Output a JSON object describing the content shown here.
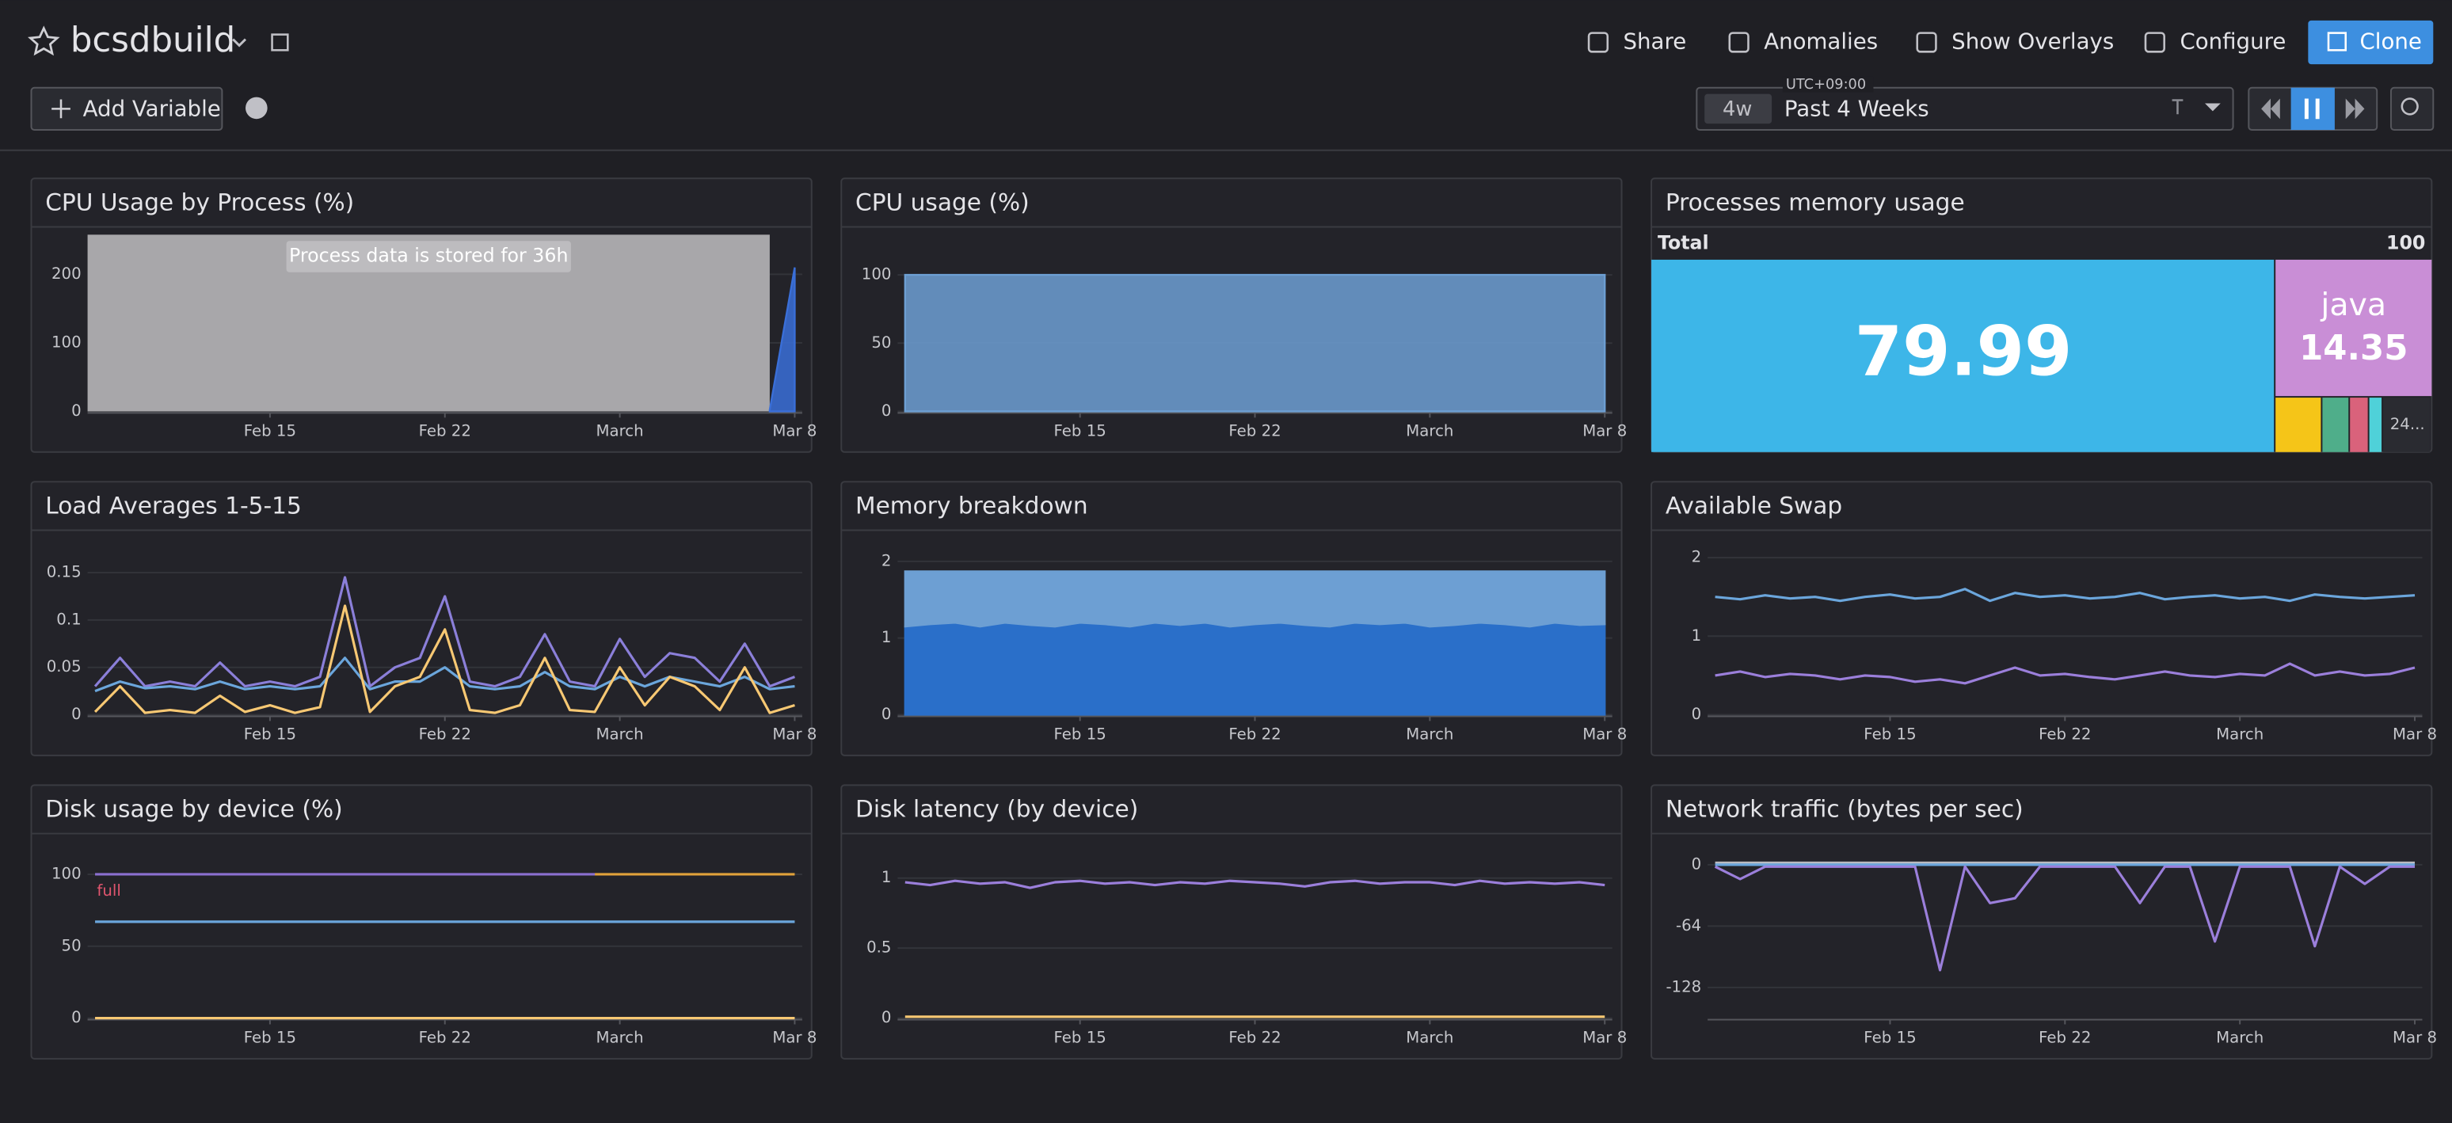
{
  "header": {
    "title": "bcsdbuild",
    "actions": [
      "Share",
      "Anomalies",
      "Show Overlays",
      "Configure",
      "Clone"
    ],
    "add_variable": "Add Variable",
    "timezone": "UTC+09:00",
    "time_short": "4w",
    "time_range": "Past 4 Weeks"
  },
  "chart_data": [
    {
      "type": "area",
      "title": "CPU Usage by Process (%)",
      "annotation": "Process data is stored for 36h",
      "grid": true,
      "x": [
        39,
        40,
        41,
        42,
        43,
        44,
        45,
        46,
        47,
        48,
        49,
        50,
        51,
        52,
        53,
        54,
        55,
        56,
        57,
        58,
        59,
        60,
        61,
        62,
        63,
        64,
        65,
        66,
        67
      ],
      "xlim": [
        38.7,
        67.3
      ],
      "xticks": [
        {
          "value": 46,
          "label": "Feb 15"
        },
        {
          "value": 53,
          "label": "Feb 22"
        },
        {
          "value": 60,
          "label": "March"
        },
        {
          "value": 67,
          "label": "Mar 8"
        }
      ],
      "ylim": [
        0,
        235
      ],
      "yticks": [
        0,
        100,
        200
      ],
      "series": [
        {
          "color": "#3a6fd8",
          "values": [
            null,
            null,
            null,
            null,
            null,
            null,
            null,
            null,
            null,
            null,
            null,
            null,
            null,
            null,
            null,
            null,
            null,
            null,
            null,
            null,
            null,
            null,
            null,
            null,
            null,
            null,
            null,
            2,
            210
          ]
        }
      ]
    },
    {
      "type": "area",
      "title": "CPU usage (%)",
      "grid": true,
      "x": [
        39,
        40,
        41,
        42,
        43,
        44,
        45,
        46,
        47,
        48,
        49,
        50,
        51,
        52,
        53,
        54,
        55,
        56,
        57,
        58,
        59,
        60,
        61,
        62,
        63,
        64,
        65,
        66,
        67
      ],
      "xlim": [
        38.7,
        67.3
      ],
      "xticks": [
        {
          "value": 46,
          "label": "Feb 15"
        },
        {
          "value": 53,
          "label": "Feb 22"
        },
        {
          "value": 60,
          "label": "March"
        },
        {
          "value": 67,
          "label": "Mar 8"
        }
      ],
      "ylim": [
        0,
        118
      ],
      "yticks": [
        0,
        50,
        100
      ],
      "series": [
        {
          "color": "#6d9fd3",
          "values": [
            100,
            100,
            100,
            100,
            100,
            100,
            100,
            100,
            100,
            100,
            100,
            100,
            100,
            100,
            100,
            100,
            100,
            100,
            100,
            100,
            100,
            100,
            100,
            100,
            100,
            100,
            100,
            100,
            100
          ]
        }
      ]
    },
    {
      "type": "treemap",
      "title": "Processes memory usage",
      "total_label": "Total",
      "total": 100,
      "items": [
        {
          "name": null,
          "value": 79.99,
          "color": "#3db6e8"
        },
        {
          "name": "java",
          "value": 14.35,
          "color": "#c98ed6"
        },
        {
          "name": null,
          "value": 1.7,
          "color": "#f5c518"
        },
        {
          "name": null,
          "value": 1.0,
          "color": "#4fae8a"
        },
        {
          "name": null,
          "value": 0.7,
          "color": "#d9627b"
        },
        {
          "name": null,
          "value": 0.5,
          "color": "#4fd1d9"
        },
        {
          "name": "24...",
          "value": 1.76,
          "color": "#2a2b31"
        }
      ]
    },
    {
      "type": "line",
      "title": "Load Averages 1-5-15",
      "grid": true,
      "x": [
        39,
        40,
        41,
        42,
        43,
        44,
        45,
        46,
        47,
        48,
        49,
        50,
        51,
        52,
        53,
        54,
        55,
        56,
        57,
        58,
        59,
        60,
        61,
        62,
        63,
        64,
        65,
        66,
        67
      ],
      "xlim": [
        38.7,
        67.3
      ],
      "xticks": [
        {
          "value": 46,
          "label": "Feb 15"
        },
        {
          "value": 53,
          "label": "Feb 22"
        },
        {
          "value": 60,
          "label": "March"
        },
        {
          "value": 67,
          "label": "Mar 8"
        }
      ],
      "ylim": [
        0,
        0.17
      ],
      "yticks": [
        0,
        0.05,
        0.1,
        0.15
      ],
      "series": [
        {
          "color": "#8b7fd9",
          "values": [
            0.03,
            0.06,
            0.03,
            0.035,
            0.03,
            0.055,
            0.03,
            0.035,
            0.03,
            0.04,
            0.145,
            0.03,
            0.05,
            0.06,
            0.125,
            0.035,
            0.03,
            0.04,
            0.085,
            0.035,
            0.03,
            0.08,
            0.04,
            0.065,
            0.06,
            0.035,
            0.075,
            0.03,
            0.04
          ]
        },
        {
          "color": "#6ba6dc",
          "values": [
            0.025,
            0.035,
            0.028,
            0.03,
            0.027,
            0.035,
            0.027,
            0.03,
            0.027,
            0.03,
            0.06,
            0.027,
            0.035,
            0.035,
            0.05,
            0.03,
            0.027,
            0.03,
            0.045,
            0.03,
            0.027,
            0.04,
            0.03,
            0.04,
            0.035,
            0.03,
            0.04,
            0.027,
            0.03
          ]
        },
        {
          "color": "#f7c873",
          "values": [
            0.003,
            0.03,
            0.002,
            0.005,
            0.002,
            0.02,
            0.003,
            0.01,
            0.002,
            0.008,
            0.115,
            0.003,
            0.03,
            0.04,
            0.09,
            0.005,
            0.002,
            0.01,
            0.06,
            0.005,
            0.003,
            0.05,
            0.01,
            0.04,
            0.03,
            0.005,
            0.05,
            0.002,
            0.01
          ]
        }
      ]
    },
    {
      "type": "area",
      "stacked": true,
      "title": "Memory breakdown",
      "grid": true,
      "x": [
        39,
        40,
        41,
        42,
        43,
        44,
        45,
        46,
        47,
        48,
        49,
        50,
        51,
        52,
        53,
        54,
        55,
        56,
        57,
        58,
        59,
        60,
        61,
        62,
        63,
        64,
        65,
        66,
        67
      ],
      "xlim": [
        38.7,
        67.3
      ],
      "xticks": [
        {
          "value": 46,
          "label": "Feb 15"
        },
        {
          "value": 53,
          "label": "Feb 22"
        },
        {
          "value": 60,
          "label": "March"
        },
        {
          "value": 67,
          "label": "Mar 8"
        }
      ],
      "ylim": [
        0,
        2.1
      ],
      "yticks": [
        0,
        1,
        2
      ],
      "series": [
        {
          "color": "#2a6fc9",
          "values": [
            1.15,
            1.18,
            1.2,
            1.15,
            1.2,
            1.17,
            1.15,
            1.2,
            1.18,
            1.15,
            1.2,
            1.17,
            1.2,
            1.15,
            1.18,
            1.2,
            1.17,
            1.15,
            1.2,
            1.18,
            1.2,
            1.15,
            1.17,
            1.2,
            1.18,
            1.15,
            1.2,
            1.17,
            1.18
          ]
        },
        {
          "color": "#6d9fd3",
          "values": [
            0.72,
            0.69,
            0.67,
            0.72,
            0.67,
            0.7,
            0.72,
            0.67,
            0.69,
            0.72,
            0.67,
            0.7,
            0.67,
            0.72,
            0.69,
            0.67,
            0.7,
            0.72,
            0.67,
            0.69,
            0.67,
            0.72,
            0.7,
            0.67,
            0.69,
            0.72,
            0.67,
            0.7,
            0.69
          ]
        }
      ]
    },
    {
      "type": "line",
      "title": "Available Swap",
      "grid": true,
      "x": [
        39,
        40,
        41,
        42,
        43,
        44,
        45,
        46,
        47,
        48,
        49,
        50,
        51,
        52,
        53,
        54,
        55,
        56,
        57,
        58,
        59,
        60,
        61,
        62,
        63,
        64,
        65,
        66,
        67
      ],
      "xlim": [
        38.7,
        67.3
      ],
      "xticks": [
        {
          "value": 46,
          "label": "Feb 15"
        },
        {
          "value": 53,
          "label": "Feb 22"
        },
        {
          "value": 60,
          "label": "March"
        },
        {
          "value": 67,
          "label": "Mar 8"
        }
      ],
      "ylim": [
        0,
        2.05
      ],
      "yticks": [
        0,
        1,
        2
      ],
      "series": [
        {
          "color": "#6ba6dc",
          "values": [
            1.5,
            1.47,
            1.52,
            1.48,
            1.5,
            1.45,
            1.5,
            1.53,
            1.48,
            1.5,
            1.6,
            1.45,
            1.55,
            1.5,
            1.52,
            1.48,
            1.5,
            1.55,
            1.47,
            1.5,
            1.52,
            1.48,
            1.5,
            1.45,
            1.53,
            1.5,
            1.48,
            1.5,
            1.52
          ]
        },
        {
          "color": "#9b7fdb",
          "values": [
            0.5,
            0.55,
            0.48,
            0.52,
            0.5,
            0.45,
            0.5,
            0.48,
            0.42,
            0.45,
            0.4,
            0.5,
            0.6,
            0.5,
            0.52,
            0.48,
            0.45,
            0.5,
            0.55,
            0.5,
            0.48,
            0.52,
            0.5,
            0.65,
            0.5,
            0.55,
            0.5,
            0.52,
            0.6
          ]
        }
      ]
    },
    {
      "type": "line",
      "title": "Disk usage by device (%)",
      "marker_label": "full",
      "grid": true,
      "x": [
        39,
        40,
        41,
        42,
        43,
        44,
        45,
        46,
        47,
        48,
        49,
        50,
        51,
        52,
        53,
        54,
        55,
        56,
        57,
        58,
        59,
        60,
        61,
        62,
        63,
        64,
        65,
        66,
        67
      ],
      "xlim": [
        38.7,
        67.3
      ],
      "xticks": [
        {
          "value": 46,
          "label": "Feb 15"
        },
        {
          "value": 53,
          "label": "Feb 22"
        },
        {
          "value": 60,
          "label": "March"
        },
        {
          "value": 67,
          "label": "Mar 8"
        }
      ],
      "ylim": [
        0,
        112
      ],
      "yticks": [
        0,
        50,
        100
      ],
      "series": [
        {
          "color": "#8b6fd0",
          "values": [
            100,
            100,
            100,
            100,
            100,
            100,
            100,
            100,
            100,
            100,
            100,
            100,
            100,
            100,
            100,
            100,
            100,
            100,
            100,
            100,
            100,
            null,
            null,
            null,
            null,
            null,
            null,
            null,
            null
          ]
        },
        {
          "color": "#e0a13a",
          "values": [
            null,
            null,
            null,
            null,
            null,
            null,
            null,
            null,
            null,
            null,
            null,
            null,
            null,
            null,
            null,
            null,
            null,
            null,
            null,
            null,
            100,
            100,
            100,
            100,
            100,
            100,
            100,
            100,
            100
          ]
        },
        {
          "color": "#6ba6dc",
          "values": [
            67,
            67,
            67,
            67,
            67,
            67,
            67,
            67,
            67,
            67,
            67,
            67,
            67,
            67,
            67,
            67,
            67,
            67,
            67,
            67,
            67,
            67,
            67,
            67,
            67,
            67,
            67,
            67,
            67
          ]
        },
        {
          "color": "#f7c873",
          "values": [
            0,
            0,
            0,
            0,
            0,
            0,
            0,
            0,
            0,
            0,
            0,
            0,
            0,
            0,
            0,
            0,
            0,
            0,
            0,
            0,
            0,
            0,
            0,
            0,
            0,
            0,
            0,
            0,
            0
          ]
        }
      ]
    },
    {
      "type": "line",
      "title": "Disk latency (by device)",
      "grid": true,
      "x": [
        39,
        40,
        41,
        42,
        43,
        44,
        45,
        46,
        47,
        48,
        49,
        50,
        51,
        52,
        53,
        54,
        55,
        56,
        57,
        58,
        59,
        60,
        61,
        62,
        63,
        64,
        65,
        66,
        67
      ],
      "xlim": [
        38.7,
        67.3
      ],
      "xticks": [
        {
          "value": 46,
          "label": "Feb 15"
        },
        {
          "value": 53,
          "label": "Feb 22"
        },
        {
          "value": 60,
          "label": "March"
        },
        {
          "value": 67,
          "label": "Mar 8"
        }
      ],
      "ylim": [
        0,
        1.15
      ],
      "yticks": [
        0,
        0.5,
        1
      ],
      "series": [
        {
          "color": "#9b7fdb",
          "values": [
            0.97,
            0.95,
            0.98,
            0.96,
            0.97,
            0.93,
            0.97,
            0.98,
            0.96,
            0.97,
            0.95,
            0.97,
            0.96,
            0.98,
            0.97,
            0.96,
            0.94,
            0.97,
            0.98,
            0.96,
            0.97,
            0.97,
            0.95,
            0.98,
            0.96,
            0.97,
            0.96,
            0.97,
            0.95
          ]
        },
        {
          "color": "#f7c873",
          "values": [
            0.01,
            0.01,
            0.01,
            0.01,
            0.01,
            0.01,
            0.01,
            0.01,
            0.01,
            0.01,
            0.01,
            0.01,
            0.01,
            0.01,
            0.01,
            0.01,
            0.01,
            0.01,
            0.01,
            0.01,
            0.01,
            0.01,
            0.01,
            0.01,
            0.01,
            0.01,
            0.01,
            0.01,
            0.01
          ]
        }
      ]
    },
    {
      "type": "line",
      "title": "Network traffic (bytes per sec)",
      "grid": true,
      "x": [
        39,
        40,
        41,
        42,
        43,
        44,
        45,
        46,
        47,
        48,
        49,
        50,
        51,
        52,
        53,
        54,
        55,
        56,
        57,
        58,
        59,
        60,
        61,
        62,
        63,
        64,
        65,
        66,
        67
      ],
      "xlim": [
        38.7,
        67.3
      ],
      "xticks": [
        {
          "value": 46,
          "label": "Feb 15"
        },
        {
          "value": 53,
          "label": "Feb 22"
        },
        {
          "value": 60,
          "label": "March"
        },
        {
          "value": 67,
          "label": "Mar 8"
        }
      ],
      "ylim": [
        -160,
        8
      ],
      "yticks": [
        0,
        -64,
        -128
      ],
      "series": [
        {
          "color": "#b9bac0",
          "values": [
            2,
            2,
            2,
            2,
            2,
            2,
            2,
            2,
            2,
            2,
            2,
            2,
            2,
            2,
            2,
            2,
            2,
            2,
            2,
            2,
            2,
            2,
            2,
            2,
            2,
            2,
            2,
            2,
            2
          ]
        },
        {
          "color": "#6ba6dc",
          "values": [
            0,
            0,
            0,
            0,
            0,
            0,
            0,
            0,
            0,
            0,
            0,
            0,
            0,
            0,
            0,
            0,
            0,
            0,
            0,
            0,
            0,
            0,
            0,
            0,
            0,
            0,
            0,
            0,
            0
          ]
        },
        {
          "color": "#9b7fdb",
          "values": [
            -2,
            -15,
            -2,
            -2,
            -2,
            -2,
            -2,
            -2,
            -2,
            -110,
            -2,
            -40,
            -35,
            -2,
            -2,
            -2,
            -2,
            -40,
            -2,
            -2,
            -80,
            -2,
            -2,
            -2,
            -85,
            -2,
            -20,
            -2,
            -2
          ]
        }
      ]
    }
  ]
}
